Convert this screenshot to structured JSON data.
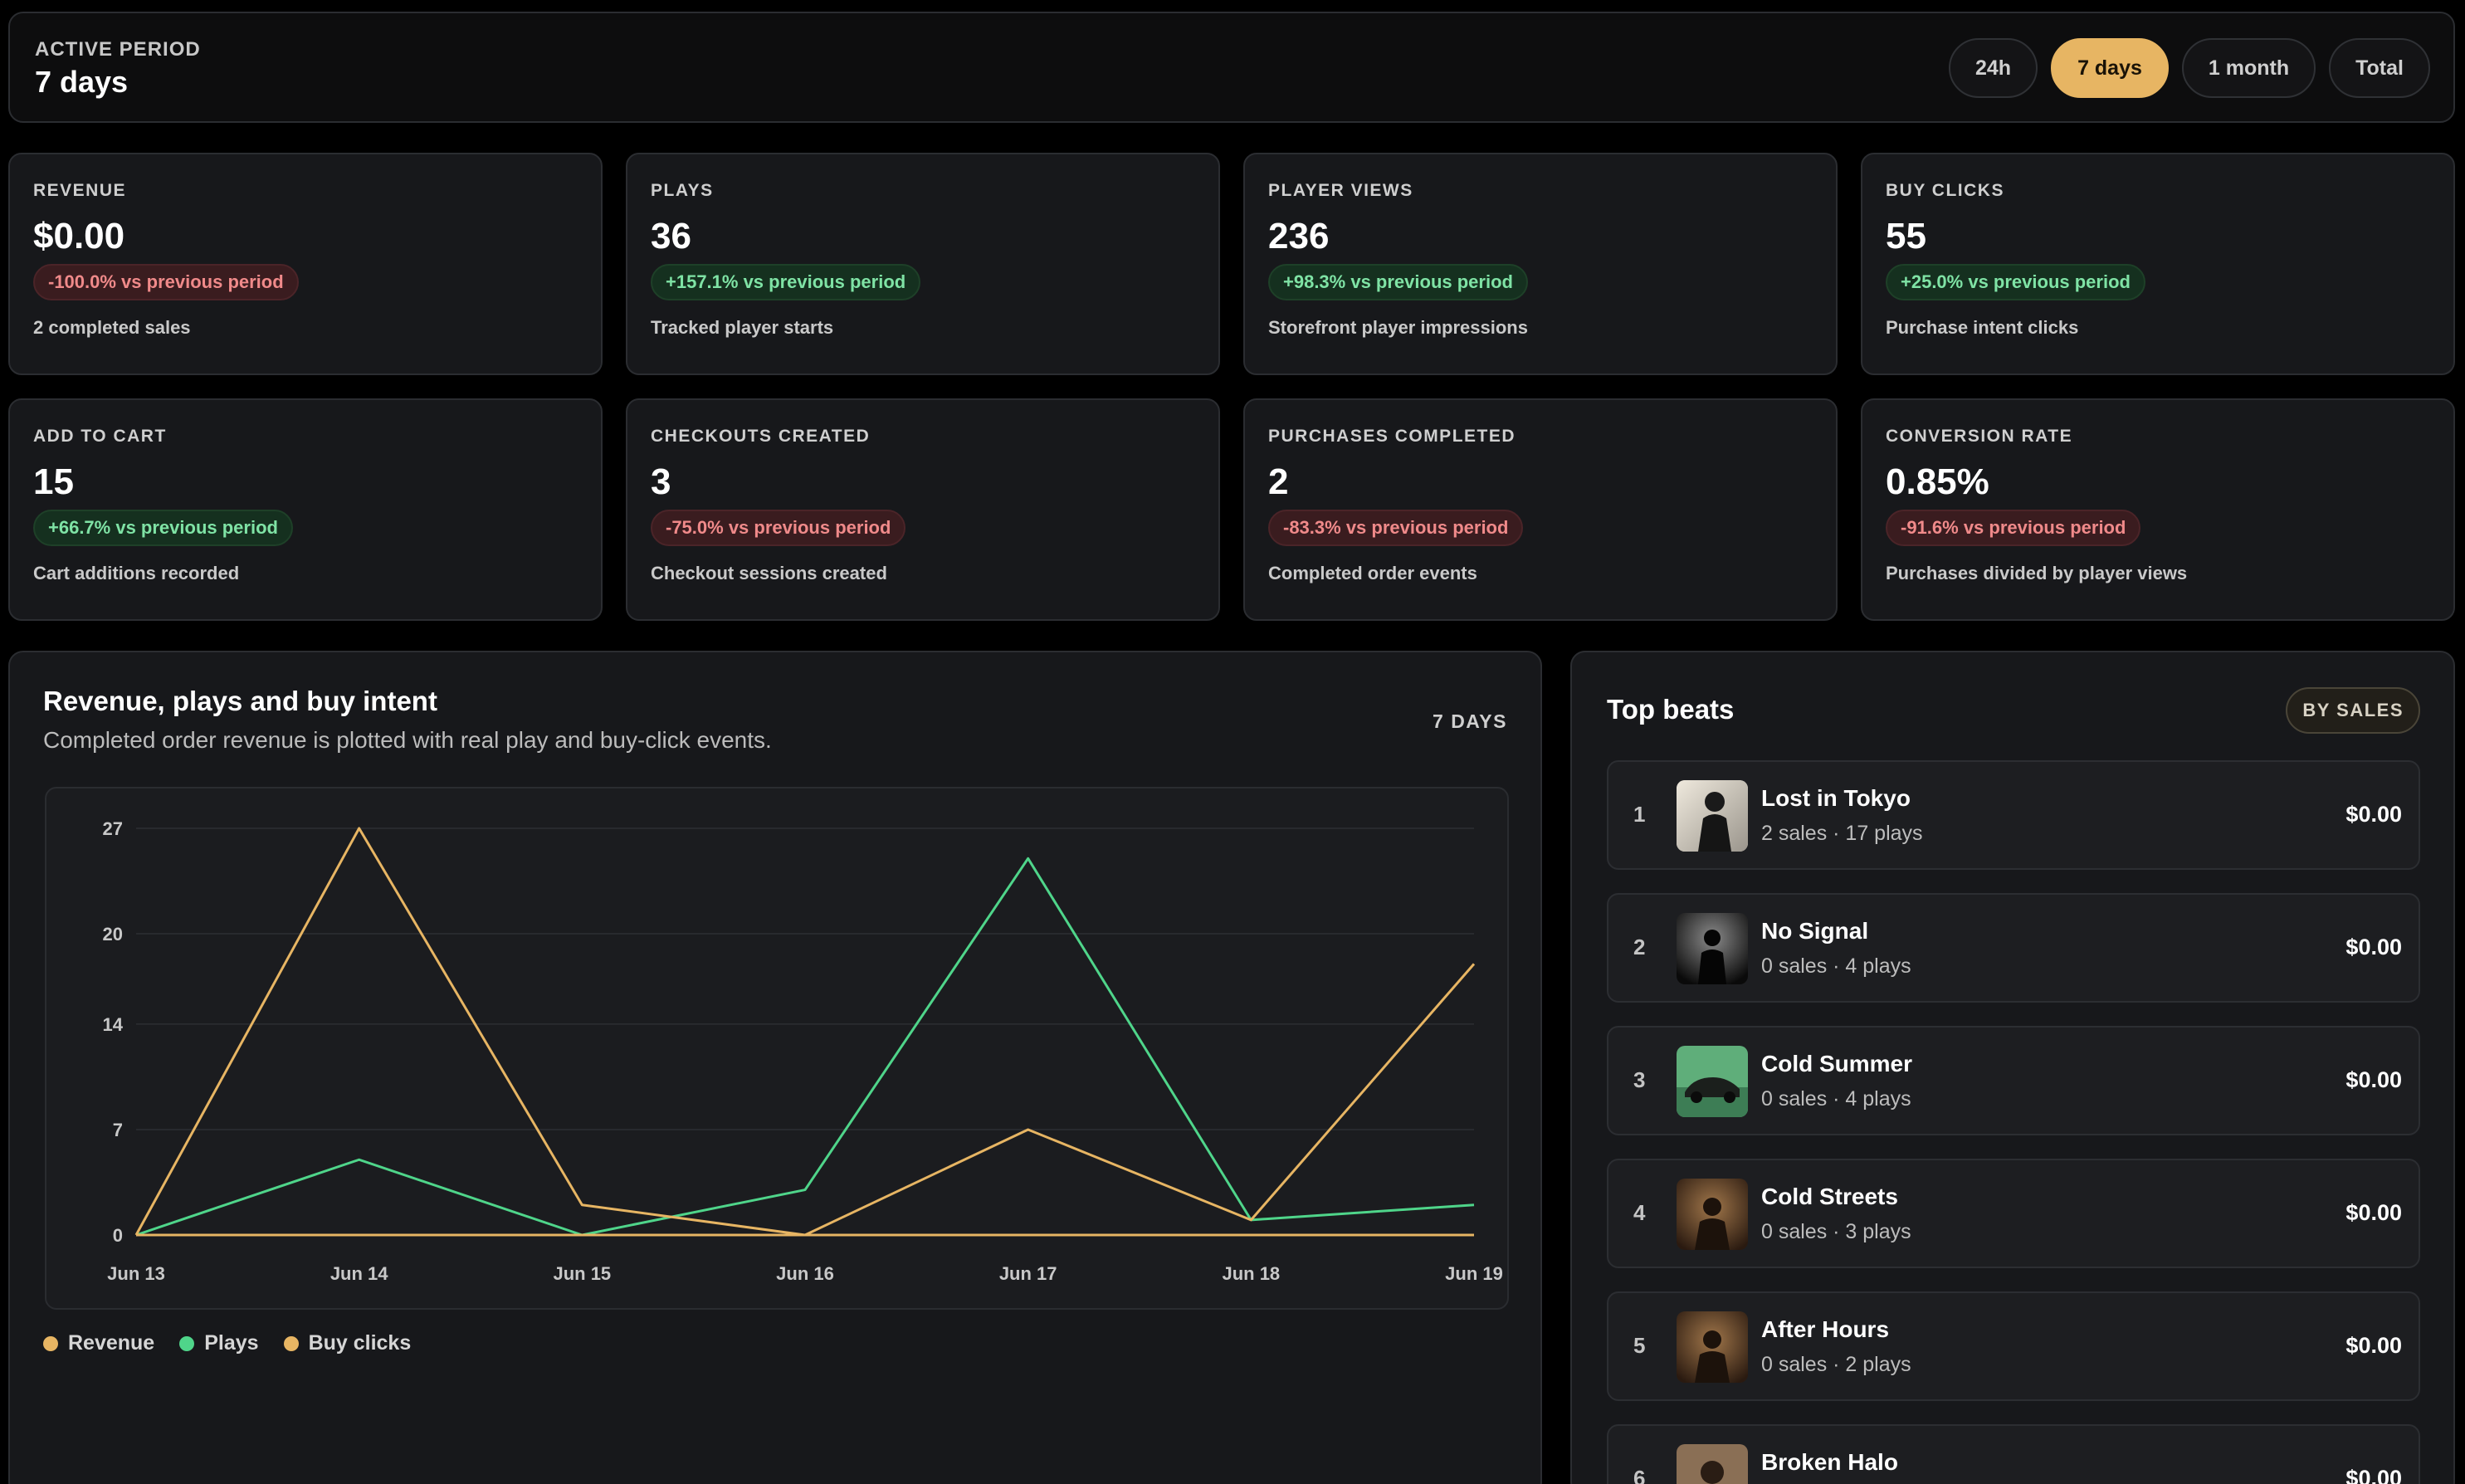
{
  "period": {
    "label": "ACTIVE PERIOD",
    "value": "7 days",
    "buttons": [
      "24h",
      "7 days",
      "1 month",
      "Total"
    ],
    "active": "7 days"
  },
  "metrics": [
    {
      "label": "REVENUE",
      "value": "$0.00",
      "change": "-100.0% vs previous period",
      "trend": "neg",
      "note": "2 completed sales"
    },
    {
      "label": "PLAYS",
      "value": "36",
      "change": "+157.1% vs previous period",
      "trend": "pos",
      "note": "Tracked player starts"
    },
    {
      "label": "PLAYER VIEWS",
      "value": "236",
      "change": "+98.3% vs previous period",
      "trend": "pos",
      "note": "Storefront player impressions"
    },
    {
      "label": "BUY CLICKS",
      "value": "55",
      "change": "+25.0% vs previous period",
      "trend": "pos",
      "note": "Purchase intent clicks"
    },
    {
      "label": "ADD TO CART",
      "value": "15",
      "change": "+66.7% vs previous period",
      "trend": "pos",
      "note": "Cart additions recorded"
    },
    {
      "label": "CHECKOUTS CREATED",
      "value": "3",
      "change": "-75.0% vs previous period",
      "trend": "neg",
      "note": "Checkout sessions created"
    },
    {
      "label": "PURCHASES COMPLETED",
      "value": "2",
      "change": "-83.3% vs previous period",
      "trend": "neg",
      "note": "Completed order events"
    },
    {
      "label": "CONVERSION RATE",
      "value": "0.85%",
      "change": "-91.6% vs previous period",
      "trend": "neg",
      "note": "Purchases divided by player views"
    }
  ],
  "chart": {
    "title": "Revenue, plays and buy intent",
    "subtitle": "Completed order revenue is plotted with real play and buy-click events.",
    "range_label": "7 DAYS"
  },
  "chart_data": {
    "type": "line",
    "x": [
      "Jun 13",
      "Jun 14",
      "Jun 15",
      "Jun 16",
      "Jun 17",
      "Jun 18",
      "Jun 19"
    ],
    "yticks": [
      0,
      7,
      14,
      20,
      27
    ],
    "ylim": [
      0,
      27
    ],
    "grid": true,
    "legend_position": "bottom-left",
    "series": [
      {
        "name": "Revenue",
        "color": "#e7b563",
        "values": [
          0,
          0,
          0,
          0,
          0,
          0,
          0
        ]
      },
      {
        "name": "Plays",
        "color": "#4fd58a",
        "values": [
          0,
          5,
          0,
          3,
          25,
          1,
          2
        ]
      },
      {
        "name": "Buy clicks",
        "color": "#e7b563",
        "values": [
          0,
          27,
          2,
          0,
          7,
          1,
          18
        ]
      }
    ]
  },
  "beats": {
    "title": "Top beats",
    "sort_label": "BY SALES",
    "items": [
      {
        "rank": "1",
        "name": "Lost in Tokyo",
        "stats": "2 sales · 17 plays",
        "price": "$0.00",
        "thumb": "portrait-icon"
      },
      {
        "rank": "2",
        "name": "No Signal",
        "stats": "0 sales · 4 plays",
        "price": "$0.00",
        "thumb": "silhouette-icon"
      },
      {
        "rank": "3",
        "name": "Cold Summer",
        "stats": "0 sales · 4 plays",
        "price": "$0.00",
        "thumb": "car-icon"
      },
      {
        "rank": "4",
        "name": "Cold Streets",
        "stats": "0 sales · 3 plays",
        "price": "$0.00",
        "thumb": "smoke-figure-icon"
      },
      {
        "rank": "5",
        "name": "After Hours",
        "stats": "0 sales · 2 plays",
        "price": "$0.00",
        "thumb": "smoke-figure-icon"
      },
      {
        "rank": "6",
        "name": "Broken Halo",
        "stats": "",
        "price": "$0.00",
        "thumb": "portrait-icon"
      }
    ]
  }
}
